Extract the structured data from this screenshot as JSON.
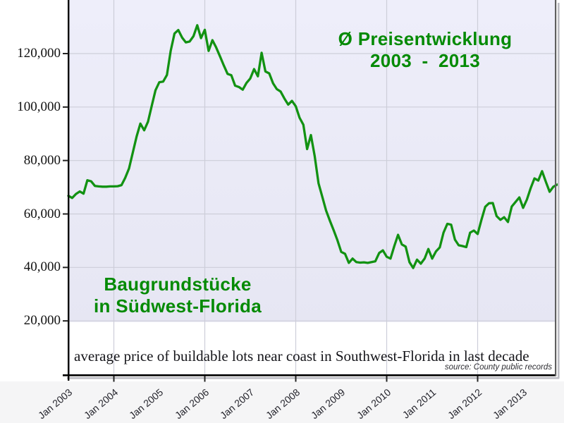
{
  "annotations": {
    "title_line1": "Ø Preisentwicklung",
    "title_line2": "2003 - 2013",
    "series_line1": "Baugrundstücke",
    "series_line2": "in Südwest-Florida",
    "caption": "average price of buildable lots near coast in Southwest-Florida in last decade",
    "source": "source: County public records"
  },
  "colors": {
    "line": "#129212",
    "annotation_green": "#048a04",
    "plot_bg_top": "#eeeefa",
    "plot_bg_bottom": "#e5e5f2",
    "grid": "#cdced9",
    "band": "#ffffff",
    "axis": "#000000",
    "tick": "#222222",
    "right_border": "#5f5f5f",
    "shadow": "#bcbcc3"
  },
  "chart_data": {
    "type": "line",
    "title": "Ø Preisentwicklung 2003 - 2013",
    "subtitle": "Baugrundstücke in Südwest-Florida",
    "caption": "average price of buildable lots near coast in Southwest-Florida in last decade",
    "source": "County public records",
    "x_unit": "month",
    "x_start": "2003-01",
    "x_end": "2013-10",
    "x_tick_labels": [
      "Jan 2003",
      "Jan 2004",
      "Jan 2005",
      "Jan 2006",
      "Jan 2007",
      "Jan 2008",
      "Jan 2009",
      "Jan 2010",
      "Jan 2011",
      "Jan 2012",
      "Jan 2013"
    ],
    "x_gridline_years": [
      2004,
      2006,
      2008,
      2010,
      2012
    ],
    "y_ticks": [
      20000,
      40000,
      60000,
      80000,
      100000,
      120000
    ],
    "y_tick_labels": [
      "20,000",
      "40,000",
      "60,000",
      "80,000",
      "100,000",
      "120,000"
    ],
    "ylim": [
      0,
      140000
    ],
    "grid": true,
    "legend": false,
    "series": [
      {
        "name": "Baugrundstücke in Südwest-Florida",
        "values": [
          66800,
          66000,
          67500,
          68400,
          67600,
          72600,
          72200,
          70500,
          70300,
          70200,
          70200,
          70300,
          70300,
          70400,
          70800,
          73500,
          77000,
          83000,
          89000,
          93800,
          91300,
          94500,
          100500,
          106300,
          109300,
          109500,
          112000,
          121000,
          127500,
          128800,
          126000,
          124200,
          124500,
          126500,
          130600,
          125800,
          128900,
          121000,
          125000,
          122300,
          119000,
          115600,
          112400,
          111900,
          108000,
          107500,
          106500,
          109000,
          110700,
          114200,
          111500,
          120300,
          113300,
          112600,
          108900,
          106700,
          105800,
          103200,
          100900,
          102300,
          100300,
          96000,
          93400,
          84300,
          89500,
          81600,
          71500,
          66500,
          61300,
          57500,
          53900,
          50200,
          45800,
          45100,
          41700,
          43300,
          42000,
          41800,
          41900,
          41700,
          42000,
          42300,
          45400,
          46400,
          44000,
          43300,
          48000,
          52200,
          48600,
          47800,
          42000,
          39800,
          42900,
          41400,
          43300,
          46900,
          43300,
          46000,
          47500,
          53000,
          56300,
          56000,
          50400,
          48300,
          48000,
          47600,
          53000,
          53800,
          52500,
          57800,
          62700,
          64000,
          64100,
          59200,
          57800,
          58800,
          57000,
          62800,
          64500,
          66200,
          62300,
          65400,
          69700,
          73300,
          72500,
          76000,
          72000,
          68300,
          70200,
          71000
        ]
      }
    ]
  }
}
